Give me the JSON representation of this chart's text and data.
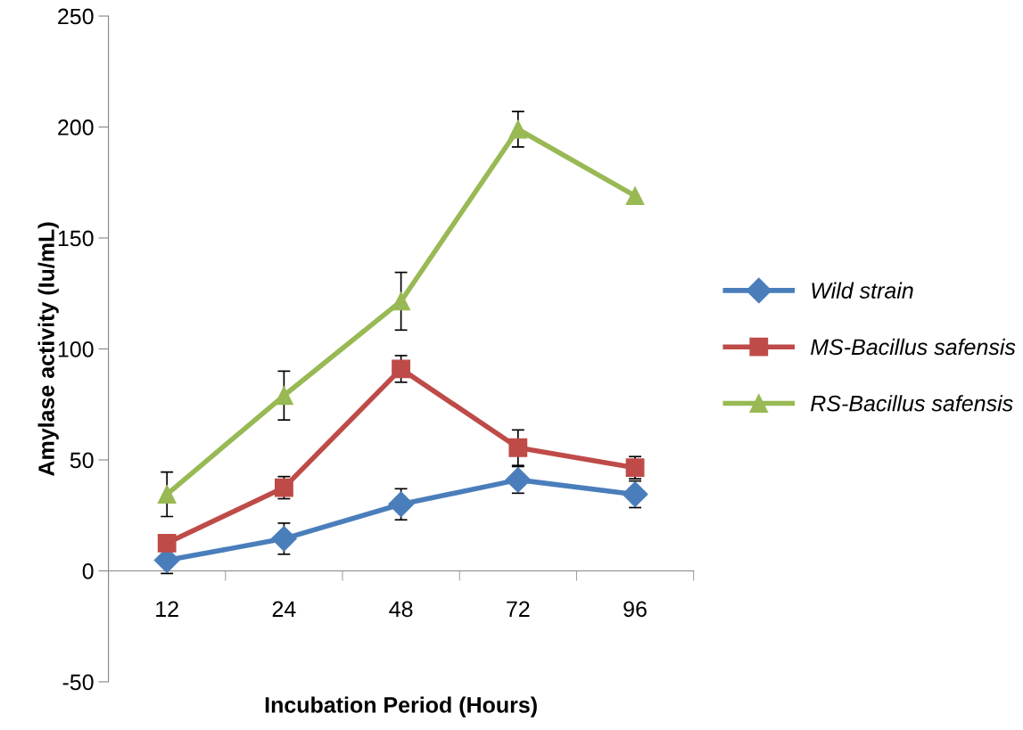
{
  "chart_data": {
    "type": "line",
    "xlabel": "Incubation Period (Hours)",
    "ylabel": "Amylase activity (Iu/mL)",
    "categories": [
      "12",
      "24",
      "48",
      "72",
      "96"
    ],
    "series": [
      {
        "name": "Wild strain",
        "color": "#4a7ebb",
        "marker": "diamond",
        "values": [
          4.8,
          14.5,
          30,
          41,
          34.5
        ],
        "errors": [
          6,
          7,
          7,
          6,
          6
        ]
      },
      {
        "name": "MS-Bacillus safensis",
        "color": "#be4b48",
        "marker": "square",
        "values": [
          12.5,
          37.5,
          91,
          55.5,
          46.5
        ],
        "errors": [
          null,
          5,
          6,
          8,
          5
        ]
      },
      {
        "name": "RS-Bacillus safensis",
        "color": "#98b954",
        "marker": "triangle",
        "values": [
          34.5,
          79,
          121.5,
          199,
          169
        ],
        "errors": [
          10,
          11,
          13,
          8,
          null
        ]
      }
    ],
    "ylim": [
      -50,
      250
    ],
    "yticks": [
      -50,
      0,
      50,
      100,
      150,
      200,
      250
    ],
    "grid": false,
    "legend": "right",
    "line_style": "solid"
  }
}
